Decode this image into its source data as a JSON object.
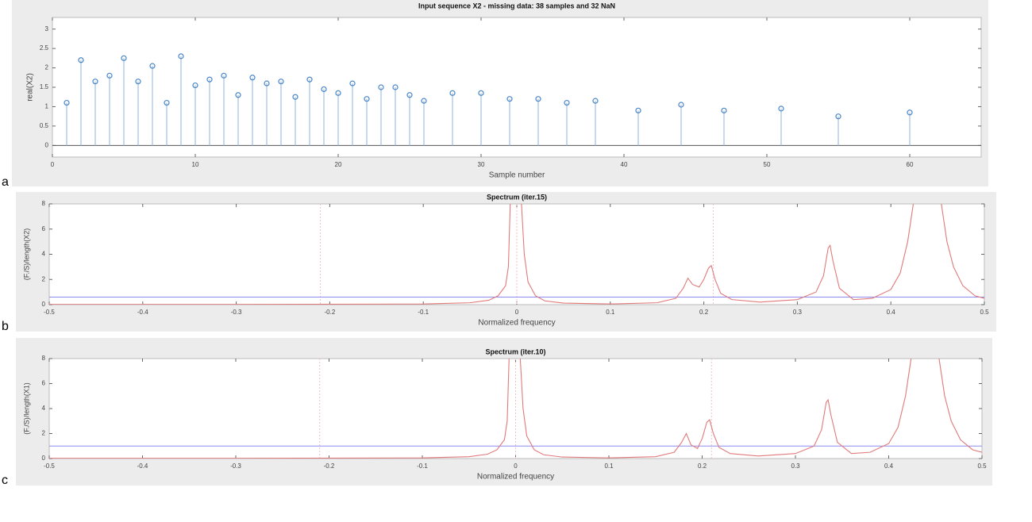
{
  "chart_data": [
    {
      "type": "stem",
      "panel": "a",
      "title": "Input sequence X2 - missing data: 38 samples and 32 NaN",
      "x_label": "Sample number",
      "y_label": "real(X2)",
      "x": [
        1,
        2,
        3,
        4,
        5,
        6,
        7,
        8,
        9,
        10,
        11,
        12,
        13,
        14,
        15,
        16,
        17,
        18,
        19,
        20,
        21,
        22,
        23,
        24,
        25,
        26,
        28,
        30,
        32,
        34,
        36,
        38,
        41,
        44,
        47,
        51,
        55,
        60
      ],
      "values": [
        1.1,
        2.2,
        1.65,
        1.8,
        2.25,
        1.65,
        2.05,
        1.1,
        2.3,
        1.55,
        1.7,
        1.8,
        1.3,
        1.75,
        1.6,
        1.65,
        1.25,
        1.7,
        1.45,
        1.35,
        1.6,
        1.2,
        1.5,
        1.5,
        1.3,
        1.15,
        1.35,
        1.35,
        1.2,
        1.2,
        1.1,
        1.15,
        0.9,
        1.05,
        0.9,
        0.95,
        0.75,
        0.85
      ],
      "color": "#4a86c8",
      "xlim": [
        0,
        65
      ],
      "xticks": [
        0,
        10,
        20,
        30,
        40,
        50,
        60
      ],
      "ylim": [
        -0.3,
        3.3
      ],
      "yticks": [
        0,
        0.5,
        1,
        1.5,
        2,
        2.5,
        3
      ]
    },
    {
      "type": "line",
      "panel": "b",
      "title": "Spectrum (iter.15)",
      "x_label": "Normalized frequency",
      "y_label": "(F./S)/length(X2)",
      "x": [
        -0.5,
        -0.3,
        -0.1,
        -0.05,
        -0.03,
        -0.02,
        -0.012,
        -0.009,
        -0.007,
        -0.001,
        0.005,
        0.008,
        0.012,
        0.02,
        0.03,
        0.05,
        0.1,
        0.15,
        0.17,
        0.178,
        0.183,
        0.188,
        0.195,
        0.2,
        0.205,
        0.208,
        0.212,
        0.218,
        0.23,
        0.26,
        0.3,
        0.32,
        0.328,
        0.333,
        0.335,
        0.338,
        0.345,
        0.36,
        0.38,
        0.4,
        0.41,
        0.418,
        0.424,
        0.439,
        0.454,
        0.46,
        0.467,
        0.477,
        0.49,
        0.5
      ],
      "series": [
        {
          "color": "#e07a7a",
          "values": [
            0.02,
            0.02,
            0.05,
            0.15,
            0.35,
            0.7,
            1.5,
            3,
            8,
            null,
            8,
            4,
            1.8,
            0.7,
            0.3,
            0.12,
            0.05,
            0.15,
            0.5,
            1.3,
            2.1,
            1.6,
            1.4,
            2,
            2.9,
            3.1,
            2,
            0.9,
            0.4,
            0.2,
            0.4,
            1,
            2.3,
            4.5,
            4.7,
            3.5,
            1.3,
            0.4,
            0.5,
            1.2,
            2.5,
            5,
            8,
            null,
            8,
            5,
            3,
            1.5,
            0.7,
            0.5
          ]
        }
      ],
      "hline": 0.6,
      "hline_color": "#8c8cf0",
      "vlines": [
        -0.21,
        0,
        0.21
      ],
      "vline_color": "#f2c0c0",
      "xlim": [
        -0.5,
        0.5
      ],
      "xticks": [
        -0.5,
        -0.4,
        -0.3,
        -0.2,
        -0.1,
        0,
        0.1,
        0.2,
        0.3,
        0.4,
        0.5
      ],
      "ylim": [
        0,
        8
      ],
      "yticks": [
        0,
        2,
        4,
        6,
        8
      ]
    },
    {
      "type": "line",
      "panel": "c",
      "title": "Spectrum (iter.10)",
      "x_label": "Normalized frequency",
      "y_label": "(F./S)/length(X1)",
      "x": [
        -0.5,
        -0.3,
        -0.1,
        -0.05,
        -0.03,
        -0.02,
        -0.012,
        -0.009,
        -0.007,
        -0.001,
        0.005,
        0.008,
        0.012,
        0.02,
        0.03,
        0.05,
        0.1,
        0.15,
        0.17,
        0.178,
        0.183,
        0.188,
        0.195,
        0.2,
        0.205,
        0.208,
        0.212,
        0.218,
        0.23,
        0.26,
        0.3,
        0.32,
        0.328,
        0.333,
        0.335,
        0.338,
        0.345,
        0.36,
        0.38,
        0.4,
        0.41,
        0.418,
        0.424,
        0.439,
        0.454,
        0.46,
        0.467,
        0.477,
        0.49,
        0.5
      ],
      "series": [
        {
          "color": "#e07a7a",
          "values": [
            0.02,
            0.02,
            0.05,
            0.15,
            0.35,
            0.7,
            1.5,
            3,
            8,
            null,
            8,
            4,
            1.8,
            0.7,
            0.3,
            0.12,
            0.05,
            0.15,
            0.5,
            1.3,
            2,
            1.1,
            0.8,
            1.6,
            2.9,
            3.1,
            2,
            0.9,
            0.4,
            0.2,
            0.4,
            1,
            2.3,
            4.5,
            4.7,
            3.5,
            1.3,
            0.4,
            0.5,
            1.2,
            2.5,
            5,
            8,
            null,
            8,
            5,
            3,
            1.5,
            0.7,
            0.5
          ]
        }
      ],
      "hline": 1,
      "hline_color": "#8c8cf0",
      "vlines": [
        -0.21,
        0,
        0.21
      ],
      "vline_color": "#f2c0c0",
      "xlim": [
        -0.5,
        0.5
      ],
      "xticks": [
        -0.5,
        -0.4,
        -0.3,
        -0.2,
        -0.1,
        0,
        0.1,
        0.2,
        0.3,
        0.4,
        0.5
      ],
      "ylim": [
        0,
        8
      ],
      "yticks": [
        0,
        2,
        4,
        6,
        8
      ]
    }
  ]
}
